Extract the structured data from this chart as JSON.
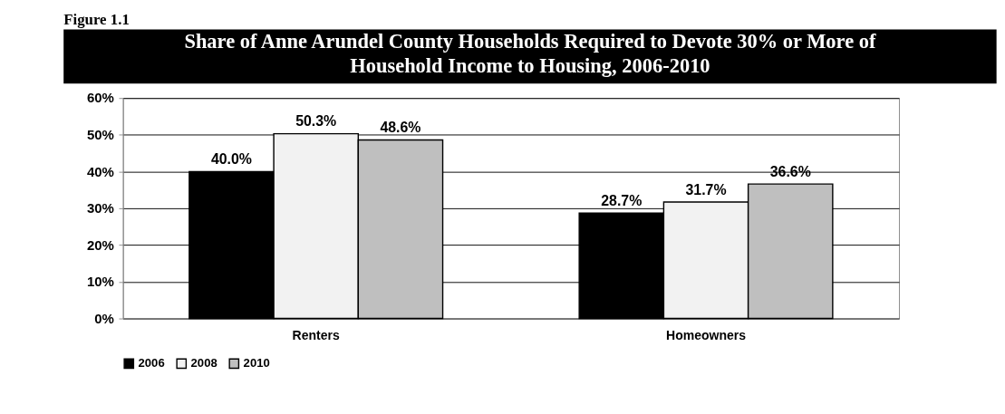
{
  "chart_data": {
    "type": "bar",
    "title": "Share of Anne Arundel County Households Required to Devote 30% or More of Household Income to Housing, 2006-2010",
    "annotations": [
      "Figure 1.1"
    ],
    "categories": [
      "Renters",
      "Homeowners"
    ],
    "series": [
      {
        "name": "2006",
        "color": "#000000",
        "values": [
          40.0,
          28.7
        ],
        "value_labels": [
          "40.0%",
          "28.7%"
        ]
      },
      {
        "name": "2008",
        "color": "#f2f2f2",
        "values": [
          50.3,
          31.7
        ],
        "value_labels": [
          "50.3%",
          "31.7%"
        ]
      },
      {
        "name": "2010",
        "color": "#bfbfbf",
        "values": [
          48.6,
          36.6
        ],
        "value_labels": [
          "48.6%",
          "36.6%"
        ]
      }
    ],
    "ylim": [
      0,
      60
    ],
    "yticks": [
      {
        "value": 0,
        "label": "0%"
      },
      {
        "value": 10,
        "label": "10%"
      },
      {
        "value": 20,
        "label": "20%"
      },
      {
        "value": 30,
        "label": "30%"
      },
      {
        "value": 40,
        "label": "40%"
      },
      {
        "value": 50,
        "label": "50%"
      },
      {
        "value": 60,
        "label": "60%"
      }
    ],
    "grid": "y",
    "legend": "bottom"
  }
}
